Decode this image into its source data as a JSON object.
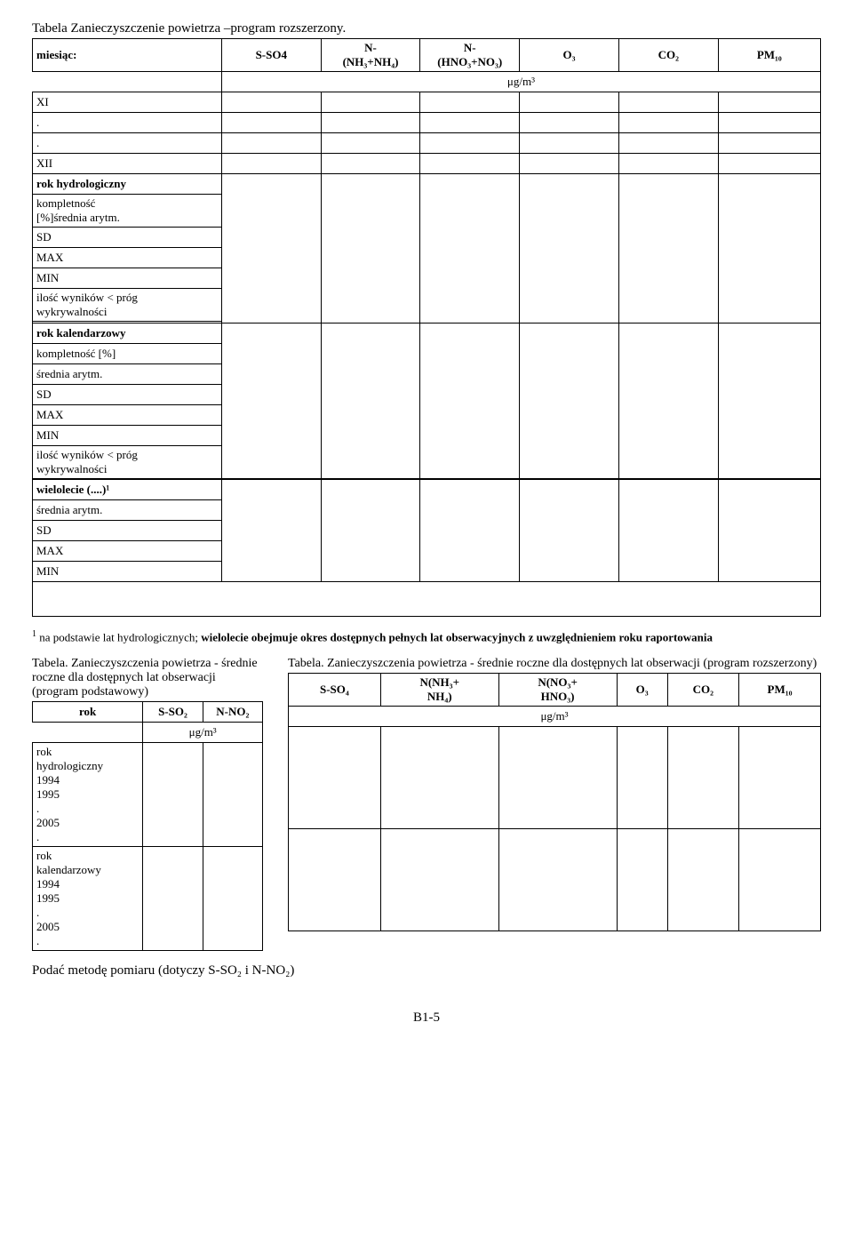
{
  "main_table": {
    "title": "Tabela Zanieczyszczenie powietrza –program rozszerzony.",
    "hdr_month": "miesiąc:",
    "hdr_sso4": "S-SO4",
    "hdr_nnh": "N-\n(NH₃+NH₄)",
    "hdr_nno": "N-\n(HNO₃+NO₃)",
    "hdr_o3": "O₃",
    "hdr_co2": "CO₂",
    "hdr_pm10": "PM₁₀",
    "unit": "μg/m³",
    "xi": "XI",
    "dot": ".",
    "xii": "XII",
    "rok_hydro": "rok hydrologiczny",
    "kompletnosc_pct_sred": "kompletność\n[%]średnia arytm.",
    "sd": "SD",
    "max": "MAX",
    "min": "MIN",
    "ilosc_wynikow": "ilość wyników < próg\nwykrywalności",
    "rok_kal": "rok kalendarzowy",
    "kompletnosc_pct": "kompletność [%]",
    "srednia": "średnia arytm.",
    "wielolecie": "wielolecie (....)¹",
    "footnote_sup": "1",
    "footnote_text": " na podstawie lat hydrologicznych;  wielolecie obejmuje okres dostępnych pełnych lat obserwacyjnych z uwzględnieniem roku raportowania"
  },
  "left_table": {
    "title": "Tabela. Zanieczyszczenia powietrza - średnie roczne dla dostępnych lat obserwacji (program podstawowy)",
    "rok": "rok",
    "sso2": "S-SO₂",
    "nno2": "N-NO₂",
    "unit": "μg/m³",
    "rok_h": "rok\nhydrologiczny\n1994\n1995\n.\n2005\n.",
    "rok_k": "rok\nkalendarzowy\n1994\n1995\n.\n2005\n."
  },
  "right_table": {
    "title": "Tabela. Zanieczyszczenia powietrza - średnie roczne dla dostępnych lat obserwacji (program rozszerzony)",
    "sso4": "S-SO₄",
    "nnh": "N(NH₃+\nNH₄)",
    "nno": "N(NO₃+\nHNO₃)",
    "o3": "O₃",
    "co2": "CO₂",
    "pm10": "PM₁₀",
    "unit": "μg/m³"
  },
  "last_line": "Podać metodę pomiaru (dotyczy S-SO₂ i N-NO₂)",
  "page_foot": "B1-5"
}
